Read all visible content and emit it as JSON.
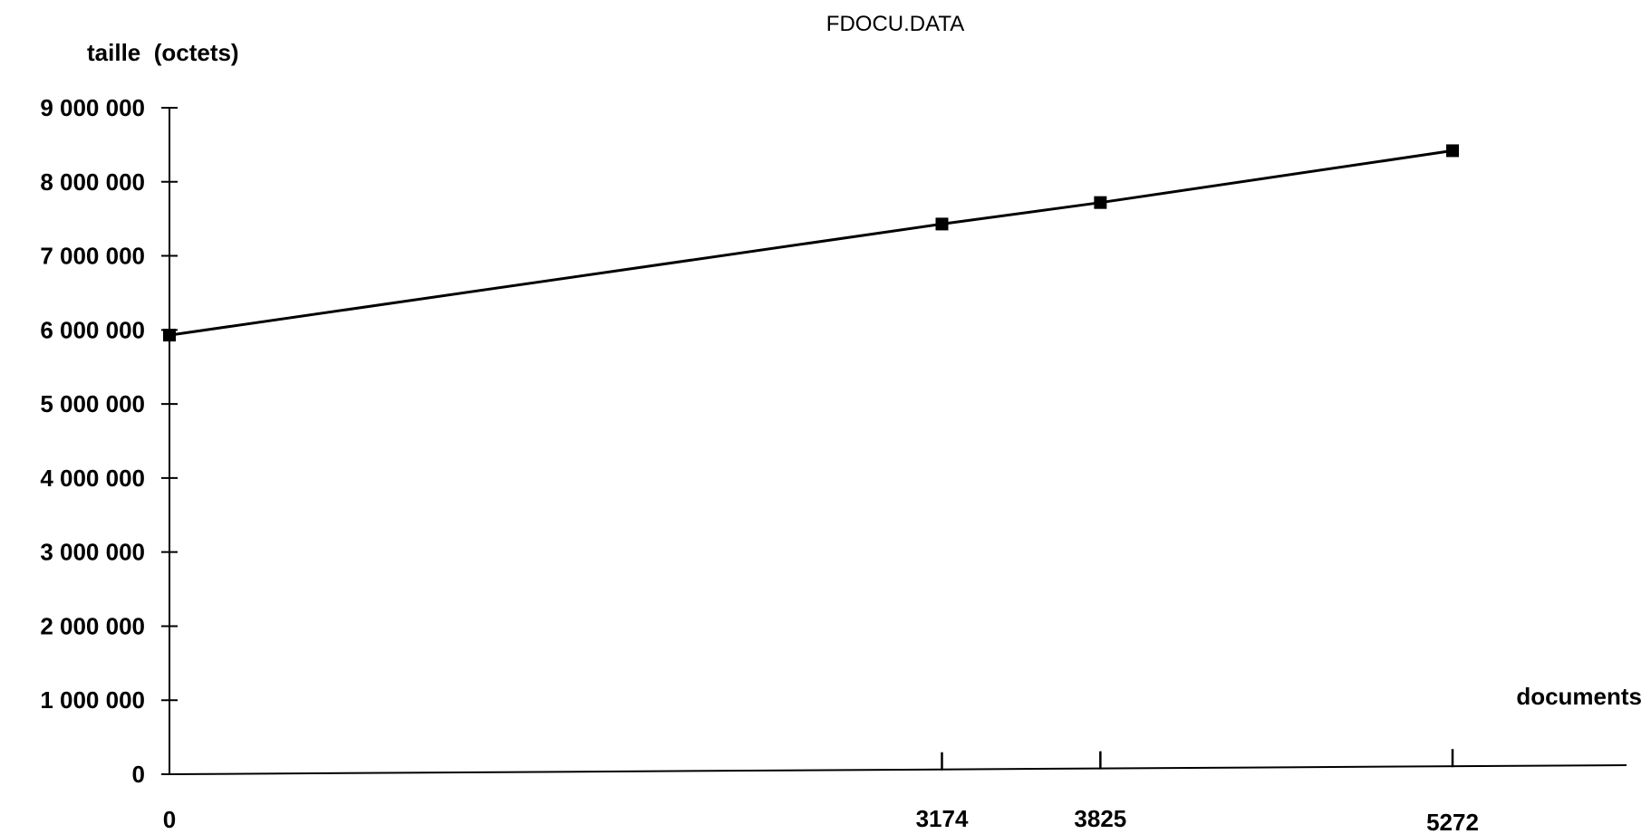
{
  "chart_data": {
    "type": "line",
    "title": "FDOCU.DATA",
    "ylabel": "taille  (octets)",
    "xlabel": "documents",
    "ylim": [
      0,
      9000000
    ],
    "xlim": [
      0,
      6400
    ],
    "y_ticks": [
      0,
      1000000,
      2000000,
      3000000,
      4000000,
      5000000,
      6000000,
      7000000,
      8000000,
      9000000
    ],
    "y_tick_labels": [
      "0",
      "1 000 000",
      "2 000 000",
      "3 000 000",
      "4 000 000",
      "5 000 000",
      "6 000 000",
      "7 000 000",
      "8 000 000",
      "9 000 000"
    ],
    "x_ticks": [
      0,
      3174,
      3825,
      5272
    ],
    "x_tick_labels": [
      "0",
      "3174",
      "3825",
      "5272"
    ],
    "grid": false,
    "legend": "none",
    "series": [
      {
        "x": [
          0,
          3174,
          3825,
          5272
        ],
        "values": [
          5930000,
          7430000,
          7720000,
          8420000
        ],
        "color": "#000000",
        "marker": "square"
      }
    ]
  }
}
